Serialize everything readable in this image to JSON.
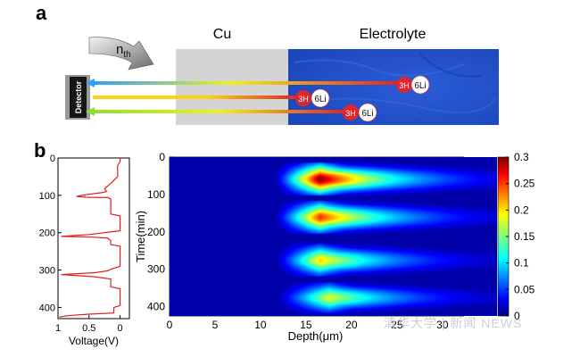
{
  "panel_a": {
    "label": "a",
    "neutron_label_main": "n",
    "neutron_label_sub": "th",
    "layer_cu": "Cu",
    "layer_electrolyte": "Electrolyte",
    "detector": "Detector",
    "particle_h": "3H",
    "particle_li": "6Li",
    "colors": {
      "cu": "#d4d4d4",
      "electrolyte": "#1f4fc9",
      "detector": "#161616",
      "particle_h": "#e0262a",
      "particle_li": "#ffffff"
    }
  },
  "panel_b": {
    "label": "b",
    "watermark": "清华大学 | 新闻 NEWS"
  },
  "chart_data": [
    {
      "type": "line",
      "title": "",
      "xlabel": "Voltage(V)",
      "ylabel": "",
      "x_reversed": true,
      "y_reversed": true,
      "xlim": [
        1,
        -0.15
      ],
      "ylim": [
        0,
        430
      ],
      "xticks": [
        "1",
        "0.5",
        "0"
      ],
      "yticks": [
        "0",
        "100",
        "200",
        "300",
        "400"
      ],
      "series": [
        {
          "name": "voltage",
          "color": "#e02020",
          "points": [
            [
              0.0,
              2
            ],
            [
              0.0,
              10
            ],
            [
              0.02,
              15
            ],
            [
              0.04,
              20
            ],
            [
              0.04,
              50
            ],
            [
              0.15,
              68
            ],
            [
              0.25,
              82
            ],
            [
              0.22,
              90
            ],
            [
              0.3,
              93
            ],
            [
              0.45,
              96
            ],
            [
              0.62,
              100
            ],
            [
              0.7,
              103
            ],
            [
              0.55,
              105
            ],
            [
              0.2,
              106
            ],
            [
              0.15,
              110
            ],
            [
              0.15,
              150
            ],
            [
              0.0,
              155
            ],
            [
              0.0,
              195
            ],
            [
              0.5,
              205
            ],
            [
              0.95,
              210
            ],
            [
              0.45,
              212
            ],
            [
              0.2,
              214
            ],
            [
              0.15,
              222
            ],
            [
              0.15,
              232
            ],
            [
              0.0,
              236
            ],
            [
              0.0,
              290
            ],
            [
              0.1,
              295
            ],
            [
              0.15,
              298
            ],
            [
              0.2,
              302
            ],
            [
              0.4,
              307
            ],
            [
              0.95,
              312
            ],
            [
              0.4,
              318
            ],
            [
              0.15,
              324
            ],
            [
              0.15,
              345
            ],
            [
              0.0,
              350
            ],
            [
              0.0,
              395
            ],
            [
              0.1,
              400
            ],
            [
              0.1,
              415
            ],
            [
              0.5,
              418
            ],
            [
              0.85,
              422
            ],
            [
              0.98,
              426
            ]
          ]
        }
      ]
    },
    {
      "type": "heatmap",
      "title": "",
      "xlabel": "Depth(μm)",
      "ylabel": "Time(min)",
      "xlim": [
        0,
        36
      ],
      "ylim": [
        0,
        425
      ],
      "y_reversed": true,
      "xticks": [
        0,
        5,
        10,
        15,
        20,
        25,
        30
      ],
      "yticks": [
        0,
        100,
        200,
        300,
        400
      ],
      "colorbar": {
        "min": 0,
        "max": 0.3,
        "ticks": [
          "0",
          "0.05",
          "0.1",
          "0.15",
          "0.2",
          "0.25",
          "0.3"
        ]
      },
      "bands": [
        {
          "time_center": 58,
          "time_halfwidth": 38,
          "depth_peak": 16.5,
          "peak_value": 0.3
        },
        {
          "time_center": 160,
          "time_halfwidth": 38,
          "depth_peak": 16.5,
          "peak_value": 0.25
        },
        {
          "time_center": 275,
          "time_halfwidth": 38,
          "depth_peak": 16.5,
          "peak_value": 0.2
        },
        {
          "time_center": 375,
          "time_halfwidth": 36,
          "depth_peak": 17.5,
          "peak_value": 0.18
        }
      ],
      "annotation": "signal begins at ~12 μm depth, decays toward ~30 μm"
    }
  ]
}
